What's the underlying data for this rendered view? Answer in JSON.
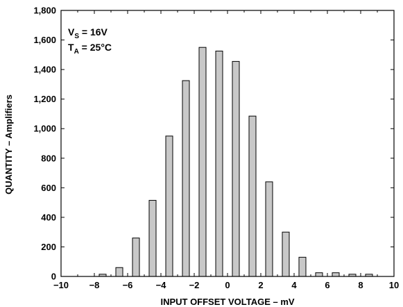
{
  "chart_data": {
    "type": "bar",
    "xlabel": "INPUT OFFSET VOLTAGE – mV",
    "ylabel": "QUANTITY – Amplifiers",
    "xlim": [
      -10,
      10
    ],
    "ylim": [
      0,
      1800
    ],
    "x_ticks": [
      -10,
      -8,
      -6,
      -4,
      -2,
      0,
      2,
      4,
      6,
      8,
      10
    ],
    "x_tick_labels": [
      "−10",
      "−8",
      "−6",
      "−4",
      "−2",
      "0",
      "2",
      "4",
      "6",
      "8",
      "10"
    ],
    "y_ticks": [
      0,
      200,
      400,
      600,
      800,
      1000,
      1200,
      1400,
      1600,
      1800
    ],
    "y_tick_labels": [
      "0",
      "200",
      "400",
      "600",
      "800",
      "1,000",
      "1,200",
      "1,400",
      "1,600",
      "1,800"
    ],
    "x": [
      -7.5,
      -6.5,
      -5.5,
      -4.5,
      -3.5,
      -2.5,
      -1.5,
      -0.5,
      0.5,
      1.5,
      2.5,
      3.5,
      4.5,
      5.5,
      6.5,
      7.5,
      8.5
    ],
    "values": [
      15,
      60,
      260,
      515,
      950,
      1325,
      1550,
      1525,
      1455,
      1085,
      640,
      300,
      130,
      25,
      25,
      15,
      15
    ],
    "grid": false,
    "legend": "none",
    "annotations": [
      {
        "main": "V",
        "sub": "S",
        "rest": " = 16V"
      },
      {
        "main": "T",
        "sub": "A",
        "rest": " = 25°C"
      }
    ],
    "colors": {
      "bar_fill": "#c8c8c8",
      "bar_edge": "#000000",
      "axes": "#000000"
    }
  }
}
